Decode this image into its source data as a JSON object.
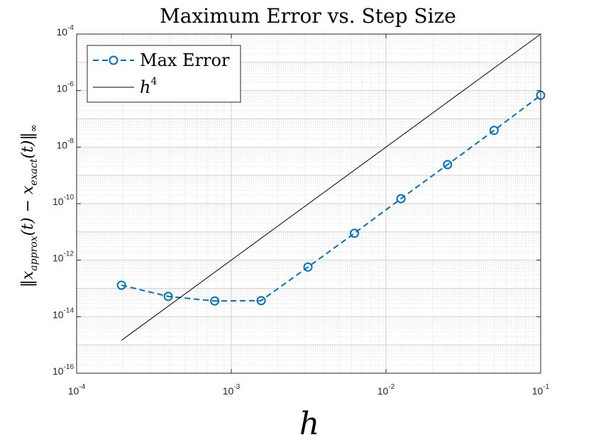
{
  "chart_data": {
    "type": "line",
    "title": "Maximum Error vs. Step Size",
    "xlabel": "h",
    "ylabel": {
      "norm_open": "‖",
      "var1": "x",
      "sub1": "approx",
      "arg1": "(t)",
      "minus": " − ",
      "var2": "x",
      "sub2": "exact",
      "arg2": "(t)",
      "norm_close": "‖",
      "sub_inf": "∞"
    },
    "x_scale": "log",
    "y_scale": "log",
    "xlim": [
      0.0001,
      0.1
    ],
    "ylim": [
      1e-16,
      0.0001
    ],
    "x_ticks": [
      {
        "value": 0.0001,
        "base": "10",
        "exp": "-4"
      },
      {
        "value": 0.001,
        "base": "10",
        "exp": "-3"
      },
      {
        "value": 0.01,
        "base": "10",
        "exp": "-2"
      },
      {
        "value": 0.1,
        "base": "10",
        "exp": "-1"
      }
    ],
    "y_ticks": [
      {
        "value": 1e-16,
        "base": "10",
        "exp": "-16"
      },
      {
        "value": 1e-14,
        "base": "10",
        "exp": "-14"
      },
      {
        "value": 1e-12,
        "base": "10",
        "exp": "-12"
      },
      {
        "value": 1e-10,
        "base": "10",
        "exp": "-10"
      },
      {
        "value": 1e-08,
        "base": "10",
        "exp": "-8"
      },
      {
        "value": 1e-06,
        "base": "10",
        "exp": "-6"
      },
      {
        "value": 0.0001,
        "base": "10",
        "exp": "-4"
      }
    ],
    "grid": true,
    "minor_grid": true,
    "legend_position": "top-left",
    "series": [
      {
        "name": "Max Error",
        "style": "dashed",
        "marker": "circle",
        "color": "#0072BD",
        "x": [
          0.000195,
          0.000391,
          0.000781,
          0.00156,
          0.00313,
          0.00625,
          0.0125,
          0.025,
          0.05,
          0.1
        ],
        "y": [
          1.3e-13,
          5.2e-14,
          3.6e-14,
          3.7e-14,
          5.7e-13,
          8.9e-12,
          1.5e-10,
          2.4e-09,
          3.9e-08,
          6.8e-07
        ]
      },
      {
        "name": "h",
        "name_sup": "4",
        "style": "solid",
        "marker": "none",
        "color": "#000000",
        "x": [
          0.000195,
          0.1
        ],
        "y": [
          1.45e-15,
          0.0001
        ]
      }
    ]
  }
}
